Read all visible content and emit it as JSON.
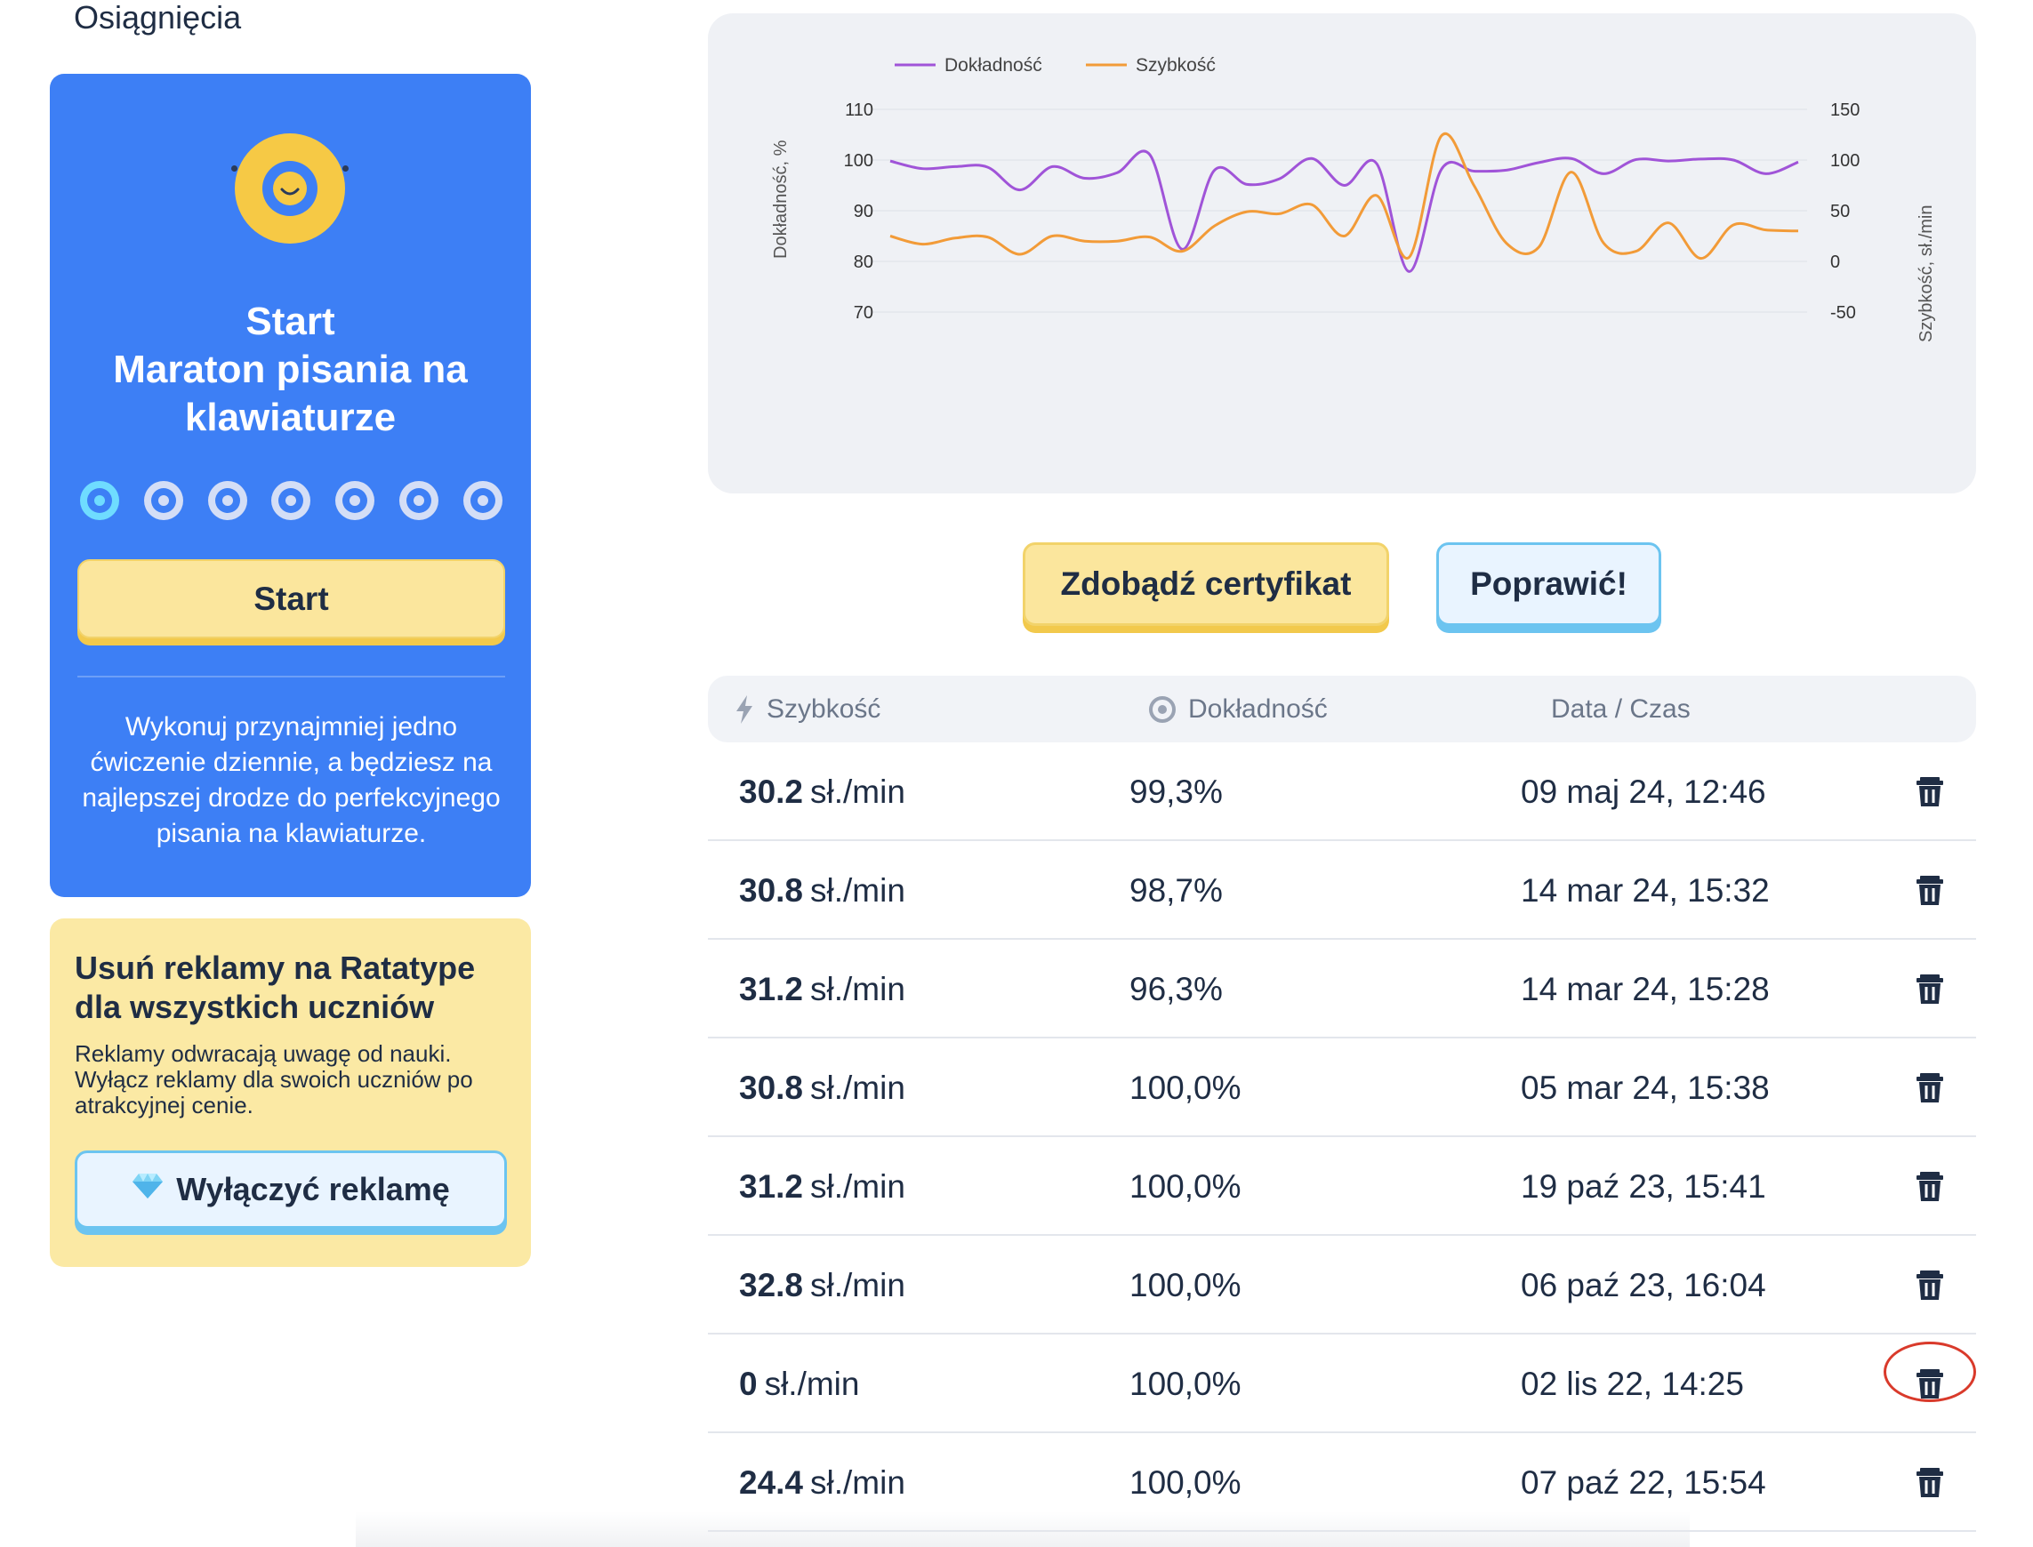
{
  "achievements": {
    "title": "Osiągnięcia"
  },
  "start_card": {
    "heading_line1": "Start",
    "heading_line2": "Maraton pisania na",
    "heading_line3": "klawiaturze",
    "steps_total": 7,
    "steps_active": 1,
    "start_button": "Start",
    "description": "Wykonuj przynajmniej jedno ćwiczenie dziennie, a będziesz na najlepszej drodze do perfekcyjnego pisania na klawiaturze."
  },
  "ads_card": {
    "title": "Usuń reklamy na Ratatype dla wszystkich uczniów",
    "description": "Reklamy odwracają uwagę od nauki. Wyłącz reklamy dla swoich uczniów po atrakcyjnej cenie.",
    "button": "Wyłączyć reklamę"
  },
  "chart_data": {
    "type": "line",
    "legend": [
      "Dokładność",
      "Szybkość"
    ],
    "legend_placement": "top-left",
    "y_left": {
      "label": "Dokładność, %",
      "ticks": [
        110,
        100,
        90,
        80,
        70
      ],
      "range": [
        70,
        110
      ]
    },
    "y_right": {
      "label": "Szybkość, sł./min",
      "ticks": [
        150,
        100,
        50,
        0,
        -50
      ],
      "range": [
        -50,
        150
      ]
    },
    "grid": true,
    "series": [
      {
        "name": "Dokładność",
        "color": "#a054d8",
        "axis": "left",
        "values": [
          99.8,
          98.3,
          98.7,
          98.6,
          94.1,
          98.7,
          96.4,
          97.5,
          101.1,
          82.4,
          98.0,
          95.2,
          96.3,
          100.3,
          95.0,
          99.3,
          78.0,
          98.2,
          97.8,
          98.0,
          99.5,
          100.3,
          97.3,
          100.1,
          99.8,
          100.2,
          100.0,
          97.3,
          99.6
        ]
      },
      {
        "name": "Szybkość",
        "color": "#f29b38",
        "axis": "right",
        "values": [
          25,
          17,
          23,
          24,
          7,
          25,
          20,
          20,
          24,
          10,
          35,
          49,
          47,
          56,
          25,
          65,
          4,
          124,
          75,
          18,
          14,
          88,
          18,
          10,
          38,
          3,
          36,
          31,
          30
        ]
      }
    ]
  },
  "buttons": {
    "certificate": "Zdobądź certyfikat",
    "improve": "Poprawić!"
  },
  "table": {
    "headers": {
      "speed": "Szybkość",
      "accuracy": "Dokładność",
      "datetime": "Data / Czas"
    },
    "unit": "sł./min",
    "rows": [
      {
        "speed": "30.2",
        "accuracy": "99,3%",
        "datetime": "09 maj 24, 12:46"
      },
      {
        "speed": "30.8",
        "accuracy": "98,7%",
        "datetime": "14 mar 24, 15:32"
      },
      {
        "speed": "31.2",
        "accuracy": "96,3%",
        "datetime": "14 mar 24, 15:28"
      },
      {
        "speed": "30.8",
        "accuracy": "100,0%",
        "datetime": "05 mar 24, 15:38"
      },
      {
        "speed": "31.2",
        "accuracy": "100,0%",
        "datetime": "19 paź 23, 15:41"
      },
      {
        "speed": "32.8",
        "accuracy": "100,0%",
        "datetime": "06 paź 23, 16:04"
      },
      {
        "speed": "0",
        "accuracy": "100,0%",
        "datetime": "02 lis 22, 14:25"
      },
      {
        "speed": "24.4",
        "accuracy": "100,0%",
        "datetime": "07 paź 22, 15:54"
      }
    ],
    "highlighted_delete_row": 6
  },
  "colors": {
    "primary_blue": "#3d7ff5",
    "yellow": "#f6c945",
    "accuracy_line": "#a054d8",
    "speed_line": "#f29b38",
    "highlight_red": "#d93a2b"
  },
  "icons": {
    "delete": "trash-icon",
    "speed": "lightning-icon",
    "accuracy": "target-icon",
    "ads": "diamond-icon",
    "badge": "smiley-badge-icon"
  }
}
